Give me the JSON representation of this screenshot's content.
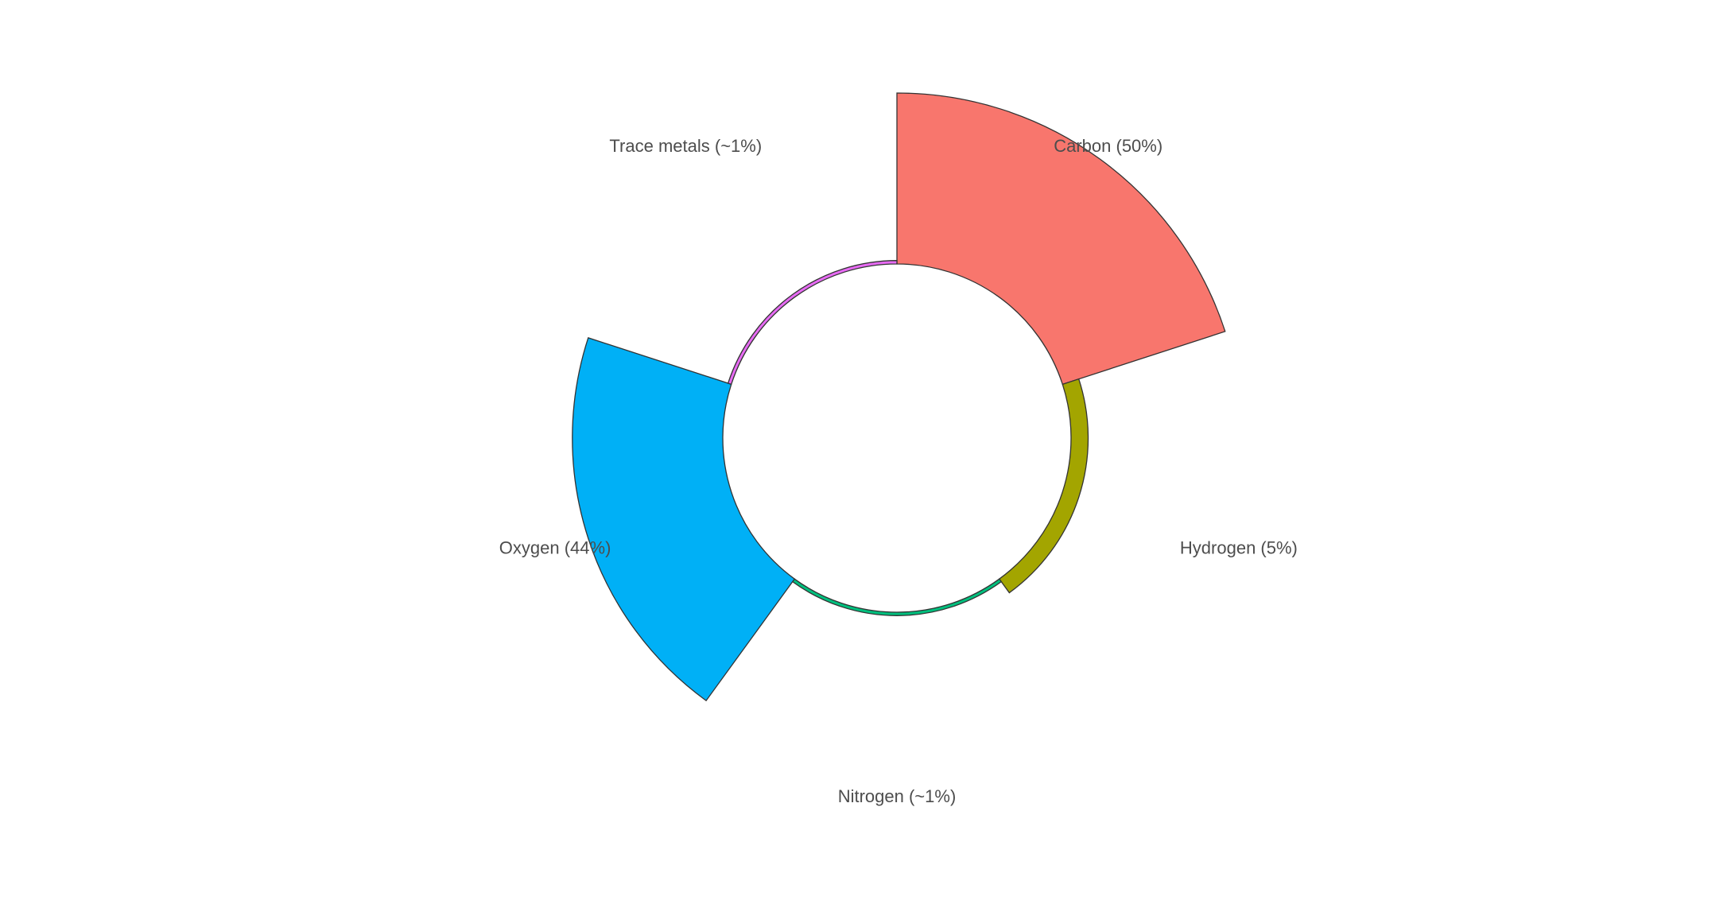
{
  "chart_data": {
    "type": "bar",
    "coord": "polar",
    "title": "",
    "xlabel": "",
    "ylabel": "",
    "grid": false,
    "legend": "none",
    "categories": [
      "Carbon (50%)",
      "Hydrogen (5%)",
      "Nitrogen (~1%)",
      "Oxygen (44%)",
      "Trace metals (~1%)"
    ],
    "values": [
      50,
      5,
      1,
      44,
      1
    ],
    "colors": [
      "#F8766D",
      "#A3A500",
      "#00BF7D",
      "#00B0F6",
      "#E76BF3"
    ]
  }
}
